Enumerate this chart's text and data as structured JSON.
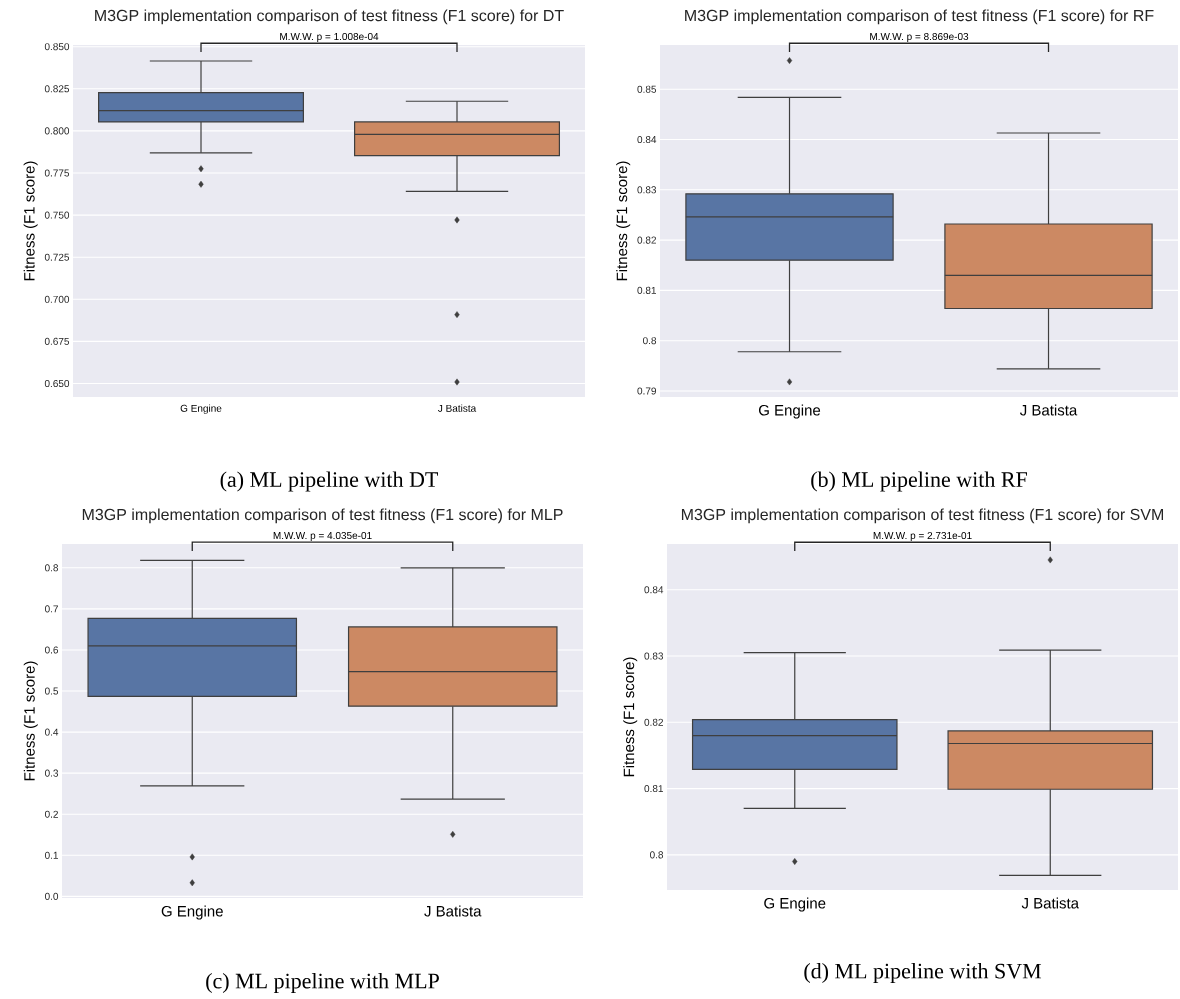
{
  "chart_data": [
    {
      "type": "box",
      "title": "M3GP implementation comparison of test fitness (F1 score) for DT",
      "ylabel": "Fitness (F1 score)",
      "categories": [
        "G Engine",
        "J Batista"
      ],
      "colors": [
        "#5875a4",
        "#cc8963"
      ],
      "boxes": [
        {
          "low": 0.787,
          "q1": 0.8053,
          "median": 0.812,
          "q3": 0.8227,
          "high": 0.8415,
          "outliers": [
            0.7775,
            0.7683
          ]
        },
        {
          "low": 0.7641,
          "q1": 0.7853,
          "median": 0.7979,
          "q3": 0.8053,
          "high": 0.8176,
          "outliers": [
            0.7471,
            0.6909,
            0.6509
          ]
        }
      ],
      "ylim": [
        0.642,
        0.851
      ],
      "yticks": [
        {
          "value": 0.65,
          "label": "0.650"
        },
        {
          "value": 0.675,
          "label": "0.675"
        },
        {
          "value": 0.7,
          "label": "0.700"
        },
        {
          "value": 0.725,
          "label": "0.725"
        },
        {
          "value": 0.75,
          "label": "0.750"
        },
        {
          "value": 0.775,
          "label": "0.775"
        },
        {
          "value": 0.8,
          "label": "0.800"
        },
        {
          "value": 0.825,
          "label": "0.825"
        },
        {
          "value": 0.85,
          "label": "0.850"
        }
      ],
      "grid": "y",
      "marker": "diamond",
      "annotations": [
        "M.W.W. p = 1.008e-04",
        "(a) ML pipeline with DT"
      ]
    },
    {
      "type": "box",
      "title": "M3GP implementation comparison of test fitness (F1 score) for RF",
      "ylabel": "Fitness (F1 score)",
      "categories": [
        "G Engine",
        "J Batista"
      ],
      "colors": [
        "#5875a4",
        "#cc8963"
      ],
      "boxes": [
        {
          "low": 0.7978,
          "q1": 0.816,
          "median": 0.8246,
          "q3": 0.8292,
          "high": 0.8484,
          "outliers": [
            0.8557,
            0.7918
          ]
        },
        {
          "low": 0.7944,
          "q1": 0.8064,
          "median": 0.813,
          "q3": 0.8232,
          "high": 0.8413
        }
      ],
      "ylim": [
        0.7888,
        0.8588
      ],
      "yticks": [
        0.79,
        0.8,
        0.81,
        0.82,
        0.83,
        0.84,
        0.85
      ],
      "grid": "y",
      "marker": "diamond",
      "annotations": [
        "M.W.W. p = 8.869e-03",
        "(b) ML pipeline with RF"
      ]
    },
    {
      "type": "box",
      "title": "M3GP implementation comparison of test fitness (F1 score) for MLP",
      "ylabel": "Fitness (F1 score)",
      "categories": [
        "G Engine",
        "J Batista"
      ],
      "colors": [
        "#5875a4",
        "#cc8963"
      ],
      "boxes": [
        {
          "low": 0.269,
          "q1": 0.487,
          "median": 0.61,
          "q3": 0.677,
          "high": 0.818,
          "outliers": [
            0.096,
            0.033
          ]
        },
        {
          "low": 0.237,
          "q1": 0.463,
          "median": 0.547,
          "q3": 0.656,
          "high": 0.8,
          "outliers": [
            0.151
          ]
        }
      ],
      "ylim": [
        -0.004,
        0.858
      ],
      "yticks": [
        {
          "value": 0,
          "label": "0.0"
        },
        0.1,
        0.2,
        0.3,
        0.4,
        0.5,
        0.6,
        0.7,
        0.8
      ],
      "grid": "y",
      "marker": "diamond",
      "annotations": [
        "M.W.W. p = 4.035e-01",
        "(c) ML pipeline with MLP"
      ]
    },
    {
      "type": "box",
      "title": "M3GP implementation comparison of test fitness (F1 score) for SVM",
      "ylabel": "Fitness (F1 score)",
      "categories": [
        "G Engine",
        "J Batista"
      ],
      "colors": [
        "#5875a4",
        "#cc8963"
      ],
      "boxes": [
        {
          "low": 0.807,
          "q1": 0.8129,
          "median": 0.818,
          "q3": 0.8204,
          "high": 0.8305,
          "outliers": [
            0.799
          ]
        },
        {
          "low": 0.7969,
          "q1": 0.8099,
          "median": 0.8168,
          "q3": 0.8187,
          "high": 0.8309,
          "outliers": [
            0.8445
          ]
        }
      ],
      "ylim": [
        0.7947,
        0.8469
      ],
      "yticks": [
        0.8,
        0.81,
        0.82,
        0.83,
        0.84
      ],
      "grid": "y",
      "marker": "diamond",
      "annotations": [
        "M.W.W. p = 2.731e-01",
        "(d) ML pipeline with SVM"
      ]
    }
  ]
}
